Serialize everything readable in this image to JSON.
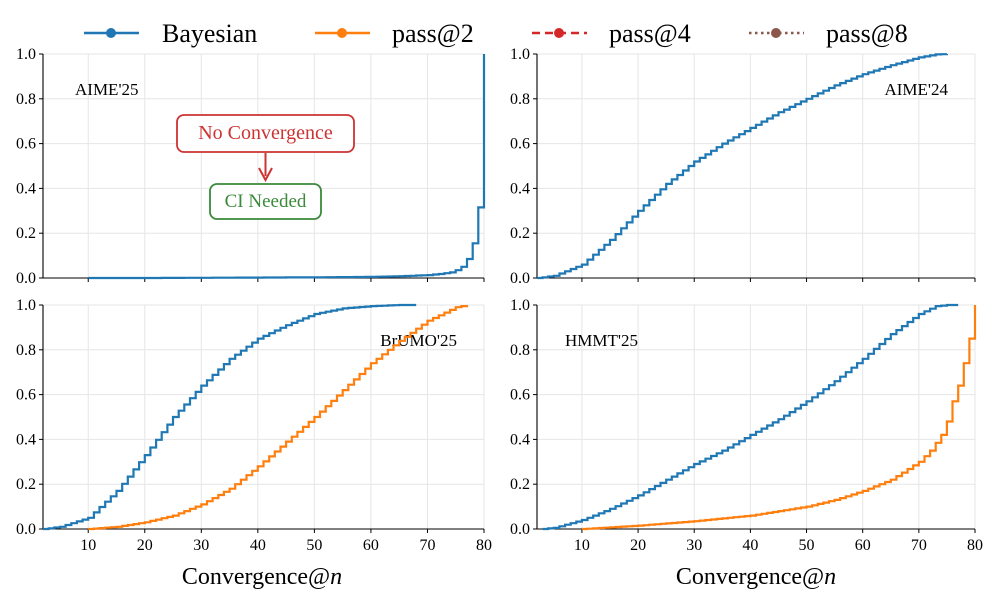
{
  "legend": {
    "items": [
      {
        "label": "Bayesian",
        "color": "#1f77b4",
        "style": "solid"
      },
      {
        "label": "pass@2",
        "color": "#ff7f0e",
        "style": "solid"
      },
      {
        "label": "pass@4",
        "color": "#d62728",
        "style": "dashed"
      },
      {
        "label": "pass@8",
        "color": "#8c564b",
        "style": "dotted"
      }
    ]
  },
  "annotations": {
    "no_convergence": "No Convergence",
    "ci_needed": "CI Needed"
  },
  "xlabel_text": "Convergence@",
  "xlabel_italic": "n",
  "chart_data": [
    {
      "type": "line",
      "title": "AIME'25",
      "xlim": [
        2,
        80
      ],
      "ylim": [
        0,
        1
      ],
      "xticks": [
        10,
        20,
        30,
        40,
        50,
        60,
        70,
        80
      ],
      "yticks": [
        0.0,
        0.2,
        0.4,
        0.6,
        0.8,
        1.0
      ],
      "series": [
        {
          "name": "Bayesian",
          "color": "#1f77b4",
          "x": [
            10,
            20,
            30,
            40,
            50,
            60,
            65,
            70,
            72,
            74,
            75,
            76,
            77,
            78,
            79,
            80
          ],
          "y": [
            0.0,
            0.0,
            0.001,
            0.002,
            0.003,
            0.005,
            0.008,
            0.013,
            0.018,
            0.025,
            0.035,
            0.05,
            0.085,
            0.155,
            0.315,
            1.0
          ]
        }
      ]
    },
    {
      "type": "line",
      "title": "AIME'24",
      "xlim": [
        2,
        80
      ],
      "ylim": [
        0,
        1
      ],
      "xticks": [
        10,
        20,
        30,
        40,
        50,
        60,
        70,
        80
      ],
      "yticks": [
        0.0,
        0.2,
        0.4,
        0.6,
        0.8,
        1.0
      ],
      "series": [
        {
          "name": "Bayesian",
          "color": "#1f77b4",
          "x": [
            2,
            5,
            10,
            15,
            20,
            25,
            30,
            35,
            40,
            45,
            50,
            55,
            60,
            65,
            70,
            73,
            75
          ],
          "y": [
            0.0,
            0.01,
            0.06,
            0.17,
            0.3,
            0.42,
            0.52,
            0.6,
            0.67,
            0.74,
            0.8,
            0.86,
            0.91,
            0.95,
            0.985,
            0.998,
            1.0
          ]
        }
      ]
    },
    {
      "type": "line",
      "title": "BrUMO'25",
      "xlim": [
        2,
        80
      ],
      "ylim": [
        0,
        1
      ],
      "xticks": [
        10,
        20,
        30,
        40,
        50,
        60,
        70,
        80
      ],
      "yticks": [
        0.0,
        0.2,
        0.4,
        0.6,
        0.8,
        1.0
      ],
      "series": [
        {
          "name": "Bayesian",
          "color": "#1f77b4",
          "x": [
            2,
            5,
            10,
            15,
            20,
            25,
            30,
            35,
            40,
            45,
            50,
            55,
            60,
            65,
            68
          ],
          "y": [
            0.0,
            0.01,
            0.05,
            0.17,
            0.33,
            0.5,
            0.64,
            0.76,
            0.85,
            0.91,
            0.96,
            0.985,
            0.995,
            1.0,
            1.0
          ]
        },
        {
          "name": "pass@2",
          "color": "#ff7f0e",
          "x": [
            10,
            15,
            20,
            25,
            30,
            35,
            40,
            45,
            50,
            55,
            60,
            65,
            70,
            75,
            77
          ],
          "y": [
            0.0,
            0.01,
            0.03,
            0.06,
            0.11,
            0.18,
            0.28,
            0.39,
            0.5,
            0.62,
            0.74,
            0.84,
            0.93,
            0.99,
            1.0
          ]
        }
      ]
    },
    {
      "type": "line",
      "title": "HMMT'25",
      "xlim": [
        2,
        80
      ],
      "ylim": [
        0,
        1
      ],
      "xticks": [
        10,
        20,
        30,
        40,
        50,
        60,
        70,
        80
      ],
      "yticks": [
        0.0,
        0.2,
        0.4,
        0.6,
        0.8,
        1.0
      ],
      "series": [
        {
          "name": "Bayesian",
          "color": "#1f77b4",
          "x": [
            3,
            5,
            10,
            15,
            20,
            25,
            30,
            35,
            40,
            45,
            50,
            55,
            60,
            65,
            70,
            73,
            75,
            77
          ],
          "y": [
            0.0,
            0.005,
            0.04,
            0.09,
            0.15,
            0.22,
            0.29,
            0.35,
            0.42,
            0.49,
            0.57,
            0.66,
            0.76,
            0.87,
            0.96,
            0.995,
            1.0,
            1.0
          ]
        },
        {
          "name": "pass@2",
          "color": "#ff7f0e",
          "x": [
            10,
            20,
            30,
            40,
            50,
            55,
            60,
            65,
            70,
            72,
            74,
            75,
            76,
            77,
            78,
            79,
            80
          ],
          "y": [
            0.0,
            0.015,
            0.035,
            0.06,
            0.1,
            0.13,
            0.17,
            0.22,
            0.3,
            0.35,
            0.42,
            0.48,
            0.57,
            0.64,
            0.74,
            0.85,
            1.0
          ]
        }
      ]
    }
  ]
}
